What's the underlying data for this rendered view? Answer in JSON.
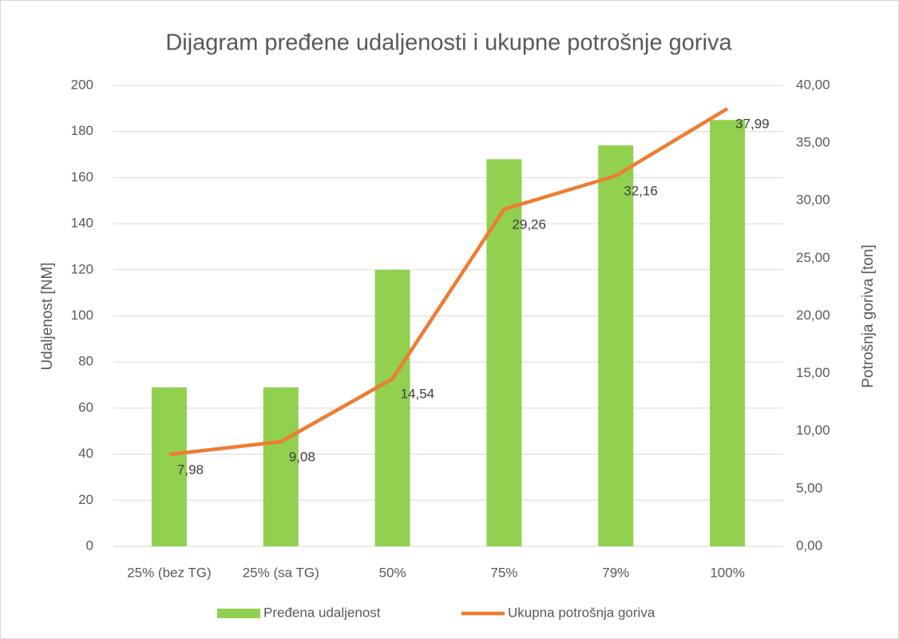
{
  "chart_data": {
    "type": "bar-line",
    "title": "Dijagram pređene udaljenosti i ukupne potrošnje goriva",
    "ylabel": "Udaljenost [NM]",
    "y2label": "Potrošnja goriva [ton]",
    "categories": [
      "25% (bez TG)",
      "25% (sa TG)",
      "50%",
      "75%",
      "79%",
      "100%"
    ],
    "series": [
      {
        "name": "Pređena udaljenost",
        "type": "bar",
        "color": "#92d050",
        "values": [
          69,
          69,
          120,
          168,
          174,
          185
        ]
      },
      {
        "name": "Ukupna potrošnja goriva",
        "type": "line",
        "axis": "y2",
        "color": "#ed7d31",
        "values": [
          7.98,
          9.08,
          14.54,
          29.26,
          32.16,
          37.99
        ],
        "value_labels": [
          "7,98",
          "9,08",
          "14,54",
          "29,26",
          "32,16",
          "37,99"
        ]
      }
    ],
    "ylim": [
      0,
      200
    ],
    "yticks": [
      0,
      20,
      40,
      60,
      80,
      100,
      120,
      140,
      160,
      180,
      200
    ],
    "y2lim": [
      0,
      40
    ],
    "y2ticks": [
      {
        "value": 0,
        "label": "0,00"
      },
      {
        "value": 5,
        "label": "5,00"
      },
      {
        "value": 10,
        "label": "10,00"
      },
      {
        "value": 15,
        "label": "15,00"
      },
      {
        "value": 20,
        "label": "20,00"
      },
      {
        "value": 25,
        "label": "25,00"
      },
      {
        "value": 30,
        "label": "30,00"
      },
      {
        "value": 35,
        "label": "35,00"
      },
      {
        "value": 40,
        "label": "40,00"
      }
    ],
    "grid": true,
    "legend": "bottom"
  }
}
